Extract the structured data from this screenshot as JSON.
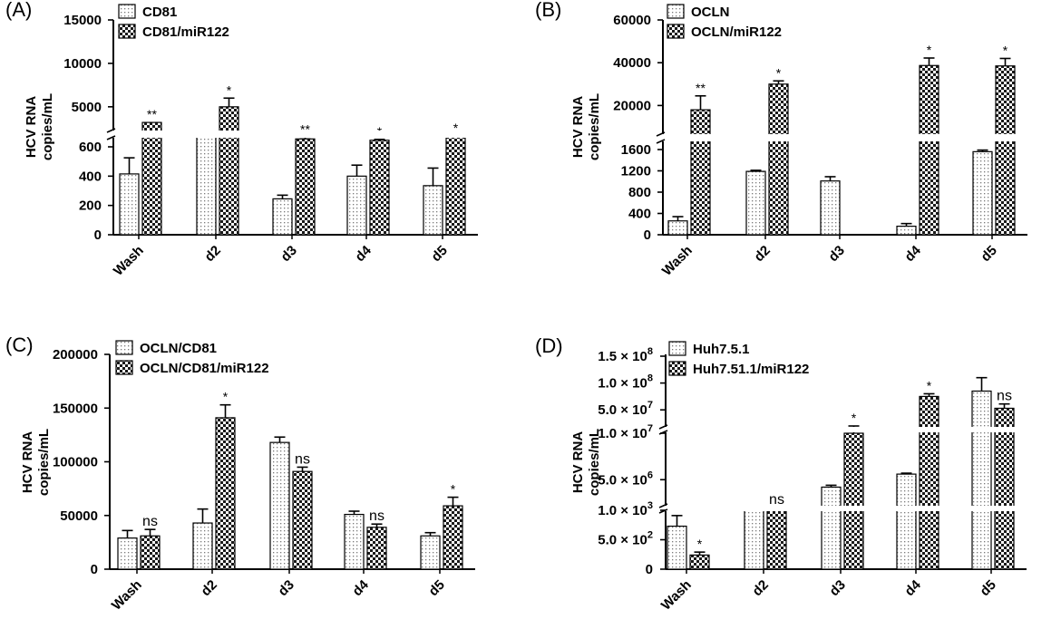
{
  "patterns": {
    "dots": "dotted bar fill",
    "checker": "checkered bar fill"
  },
  "chart_data": [
    {
      "panel": "(A)",
      "type": "bar",
      "ylabel": [
        "HCV RNA",
        "copies/mL"
      ],
      "categories": [
        "Wash",
        "d2",
        "d3",
        "d4",
        "d5"
      ],
      "axis": {
        "broken": true,
        "lower_ticks": [
          0,
          200,
          400,
          600
        ],
        "upper_ticks": [
          5000,
          10000,
          15000
        ],
        "upper_range": [
          3000,
          15000
        ]
      },
      "series": [
        {
          "name": "CD81",
          "pattern": "dots",
          "values": [
            415,
            1500,
            245,
            400,
            335
          ],
          "errors": [
            110,
            0,
            25,
            75,
            120
          ],
          "annotations": [
            "",
            "",
            "",
            "",
            ""
          ]
        },
        {
          "name": "CD81/miR122",
          "pattern": "checker",
          "values": [
            3200,
            5000,
            1300,
            1150,
            1500
          ],
          "errors": [
            0,
            1000,
            200,
            100,
            150
          ],
          "annotations": [
            "**",
            "*",
            "**",
            "*",
            "*"
          ]
        }
      ]
    },
    {
      "panel": "(B)",
      "type": "bar",
      "ylabel": [
        "HCV RNA",
        "copies/mL"
      ],
      "categories": [
        "Wash",
        "d2",
        "d3",
        "d4",
        "d5"
      ],
      "axis": {
        "broken": true,
        "lower_ticks": [
          0,
          400,
          800,
          1200,
          1600
        ],
        "upper_ticks": [
          20000,
          40000,
          60000
        ],
        "upper_range": [
          10000,
          60000
        ]
      },
      "series": [
        {
          "name": "OCLN",
          "pattern": "dots",
          "values": [
            260,
            1190,
            1010,
            160,
            1560
          ],
          "errors": [
            80,
            20,
            80,
            50,
            30
          ],
          "annotations": [
            "",
            "",
            "",
            "",
            ""
          ]
        },
        {
          "name": "OCLN/miR122",
          "pattern": "checker",
          "values": [
            18000,
            30000,
            null,
            38700,
            38500
          ],
          "errors": [
            6500,
            1500,
            null,
            3500,
            3500
          ],
          "annotations": [
            "**",
            "*",
            "",
            "*",
            "*"
          ]
        }
      ]
    },
    {
      "panel": "(C)",
      "type": "bar",
      "ylabel": [
        "HCV RNA",
        "copies/mL"
      ],
      "categories": [
        "Wash",
        "d2",
        "d3",
        "d4",
        "d5"
      ],
      "axis": {
        "broken": false,
        "ticks": [
          0,
          50000,
          100000,
          150000,
          200000
        ],
        "range": [
          0,
          200000
        ]
      },
      "series": [
        {
          "name": "OCLN/CD81",
          "pattern": "dots",
          "values": [
            29000,
            43000,
            118000,
            51000,
            31000
          ],
          "errors": [
            7000,
            13000,
            5000,
            3000,
            3000
          ],
          "annotations": [
            "",
            "",
            "",
            "",
            ""
          ]
        },
        {
          "name": "OCLN/CD81/miR122",
          "pattern": "checker",
          "values": [
            31000,
            141000,
            91000,
            39000,
            59000
          ],
          "errors": [
            6000,
            12000,
            4000,
            3000,
            8000
          ],
          "annotations": [
            "ns",
            "*",
            "ns",
            "ns",
            "*"
          ]
        }
      ]
    },
    {
      "panel": "(D)",
      "type": "bar",
      "ylabel": [
        "HCV RNA",
        "copies/mL"
      ],
      "categories": [
        "Wash",
        "d2",
        "d3",
        "d4",
        "d5"
      ],
      "axis": {
        "broken": true,
        "segments": [
          {
            "ticks": [
              "0",
              "5.0 × 10^2",
              "1.0 × 10^3"
            ]
          },
          {
            "ticks": [
              "5.0 × 10^6",
              "1.0 × 10^7"
            ]
          },
          {
            "ticks": [
              "5.0 × 10^7",
              "1.0 × 10^8",
              "1.5 × 10^8"
            ]
          }
        ]
      },
      "series": [
        {
          "name": "Huh7.5.1",
          "pattern": "dots",
          "values": [
            "7.3 × 10^2",
            "1.45 × 10^3",
            "4.2 × 10^6",
            "5.6 × 10^6",
            "8.5 × 10^7"
          ],
          "annotations": [
            "",
            "",
            "",
            "",
            ""
          ]
        },
        {
          "name": "Huh7.51.1/miR122",
          "pattern": "checker",
          "values": [
            "2.4 × 10^2",
            "1.4 × 10^3",
            "1.0 × 10^7",
            "7.5 × 10^7",
            "5.3 × 10^7"
          ],
          "annotations": [
            "*",
            "ns",
            "*",
            "*",
            "ns"
          ]
        }
      ]
    }
  ]
}
